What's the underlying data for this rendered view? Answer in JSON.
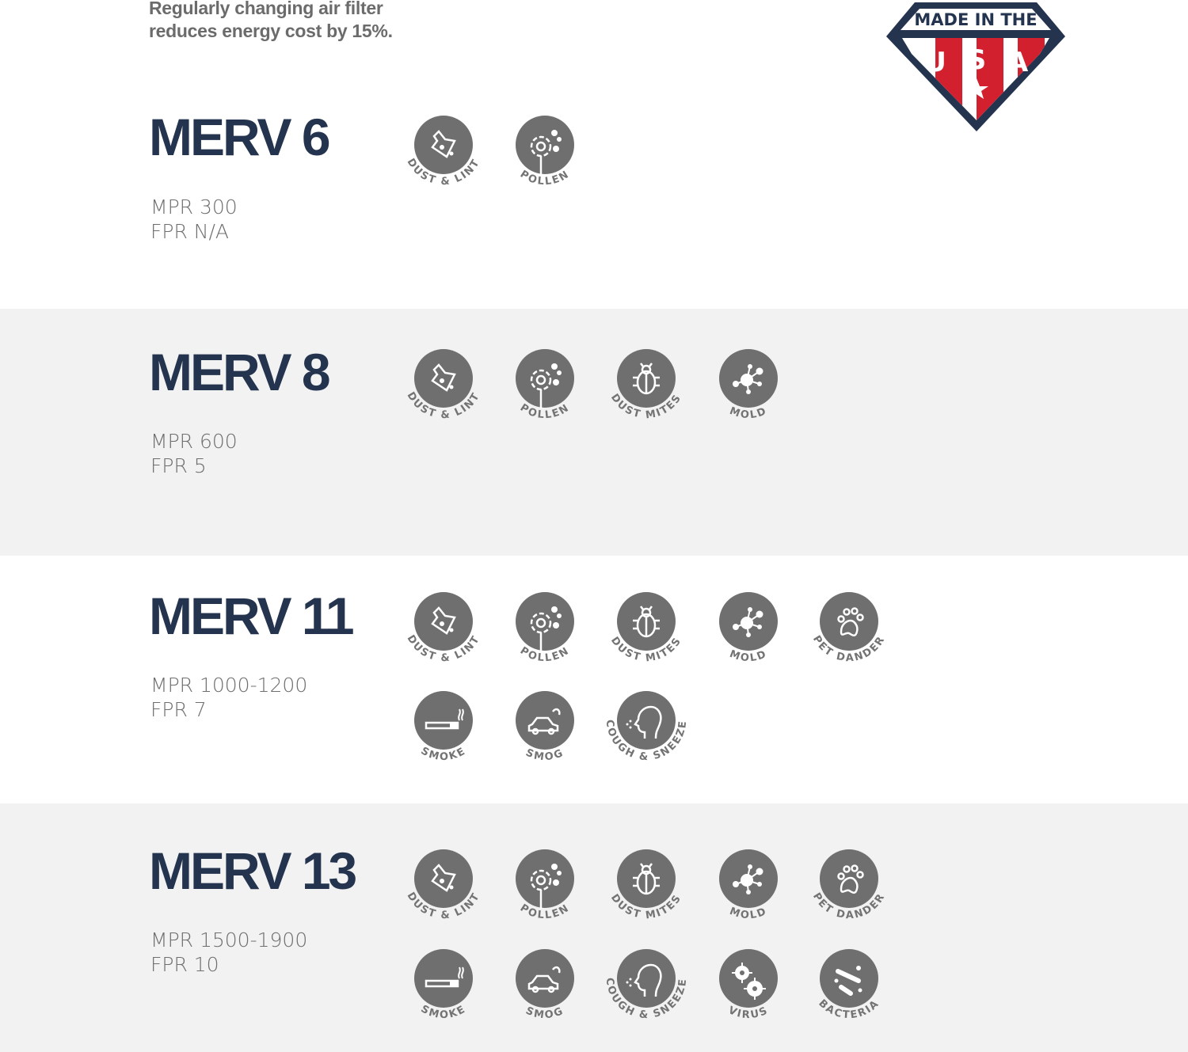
{
  "intro": {
    "line1": "Regularly changing air filter",
    "line2": "reduces energy cost by 15%."
  },
  "badge": {
    "top_text": "MADE IN THE",
    "letters": [
      "U",
      "S",
      "A"
    ],
    "colors": {
      "navy": "#24344f",
      "red": "#d2202f"
    }
  },
  "colors": {
    "title": "#24344f",
    "icon": "#6f6f6f",
    "band": "#f2f2f2"
  },
  "sections": [
    {
      "title": "MERV 6",
      "mpr": "MPR 300",
      "fpr": "FPR N/A",
      "icons": [
        {
          "type": "dust-lint",
          "label": "DUST & LINT"
        },
        {
          "type": "pollen",
          "label": "POLLEN"
        }
      ]
    },
    {
      "title": "MERV 8",
      "mpr": "MPR 600",
      "fpr": "FPR 5",
      "icons": [
        {
          "type": "dust-lint",
          "label": "DUST & LINT"
        },
        {
          "type": "pollen",
          "label": "POLLEN"
        },
        {
          "type": "dust-mites",
          "label": "DUST  MITES"
        },
        {
          "type": "mold",
          "label": "MOLD"
        }
      ]
    },
    {
      "title": "MERV 11",
      "mpr": "MPR 1000-1200",
      "fpr": "FPR 7",
      "icons": [
        {
          "type": "dust-lint",
          "label": "DUST & LINT"
        },
        {
          "type": "pollen",
          "label": "POLLEN"
        },
        {
          "type": "dust-mites",
          "label": "DUST  MITES"
        },
        {
          "type": "mold",
          "label": "MOLD"
        },
        {
          "type": "pet-dander",
          "label": "PET DANDER"
        },
        {
          "type": "smoke",
          "label": "SMOKE"
        },
        {
          "type": "smog",
          "label": "SMOG"
        },
        {
          "type": "cough-sneeze",
          "label": "COUGH & SNEEZE"
        }
      ]
    },
    {
      "title": "MERV 13",
      "mpr": "MPR 1500-1900",
      "fpr": "FPR 10",
      "icons": [
        {
          "type": "dust-lint",
          "label": "DUST & LINT"
        },
        {
          "type": "pollen",
          "label": "POLLEN"
        },
        {
          "type": "dust-mites",
          "label": "DUST  MITES"
        },
        {
          "type": "mold",
          "label": "MOLD"
        },
        {
          "type": "pet-dander",
          "label": "PET DANDER"
        },
        {
          "type": "smoke",
          "label": "SMOKE"
        },
        {
          "type": "smog",
          "label": "SMOG"
        },
        {
          "type": "cough-sneeze",
          "label": "COUGH & SNEEZE"
        },
        {
          "type": "virus",
          "label": "VIRUS"
        },
        {
          "type": "bacteria",
          "label": "BACTERIA"
        }
      ]
    }
  ]
}
